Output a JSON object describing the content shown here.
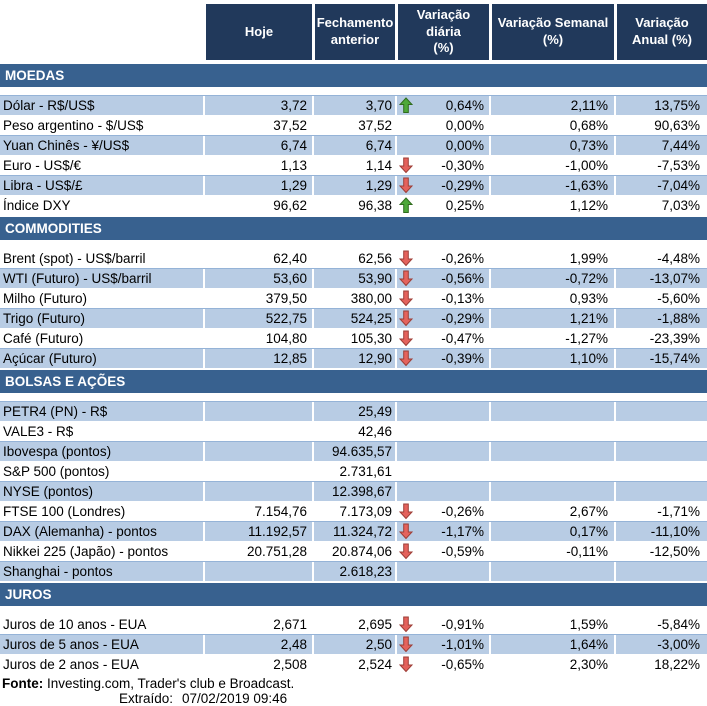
{
  "columns": [
    "",
    "Hoje",
    "Fechamento\nanterior",
    "Variação diária\n(%)",
    "Variação Semanal\n(%)",
    "Variação\nAnual (%)"
  ],
  "sections": [
    {
      "title": "MOEDAS",
      "rows": [
        {
          "label": "Dólar - R$/US$",
          "hoje": "3,72",
          "fechamento": "3,70",
          "arrow": "up",
          "var_diaria": "0,64%",
          "var_semanal": "2,11%",
          "var_anual": "13,75%"
        },
        {
          "label": "Peso argentino - $/US$",
          "hoje": "37,52",
          "fechamento": "37,52",
          "arrow": "",
          "var_diaria": "0,00%",
          "var_semanal": "0,68%",
          "var_anual": "90,63%"
        },
        {
          "label": "Yuan Chinês - ¥/US$",
          "hoje": "6,74",
          "fechamento": "6,74",
          "arrow": "",
          "var_diaria": "0,00%",
          "var_semanal": "0,73%",
          "var_anual": "7,44%"
        },
        {
          "label": "Euro - US$/€",
          "hoje": "1,13",
          "fechamento": "1,14",
          "arrow": "down",
          "var_diaria": "-0,30%",
          "var_semanal": "-1,00%",
          "var_anual": "-7,53%"
        },
        {
          "label": "Libra - US$/£",
          "hoje": "1,29",
          "fechamento": "1,29",
          "arrow": "down",
          "var_diaria": "-0,29%",
          "var_semanal": "-1,63%",
          "var_anual": "-7,04%"
        },
        {
          "label": "Índice DXY",
          "hoje": "96,62",
          "fechamento": "96,38",
          "arrow": "up",
          "var_diaria": "0,25%",
          "var_semanal": "1,12%",
          "var_anual": "7,03%"
        }
      ]
    },
    {
      "title": "COMMODITIES",
      "rows": [
        {
          "label": "Brent (spot) - US$/barril",
          "hoje": "62,40",
          "fechamento": "62,56",
          "arrow": "down",
          "var_diaria": "-0,26%",
          "var_semanal": "1,99%",
          "var_anual": "-4,48%"
        },
        {
          "label": "WTI (Futuro) - US$/barril",
          "hoje": "53,60",
          "fechamento": "53,90",
          "arrow": "down",
          "var_diaria": "-0,56%",
          "var_semanal": "-0,72%",
          "var_anual": "-13,07%"
        },
        {
          "label": "Milho (Futuro)",
          "hoje": "379,50",
          "fechamento": "380,00",
          "arrow": "down",
          "var_diaria": "-0,13%",
          "var_semanal": "0,93%",
          "var_anual": "-5,60%"
        },
        {
          "label": "Trigo (Futuro)",
          "hoje": "522,75",
          "fechamento": "524,25",
          "arrow": "down",
          "var_diaria": "-0,29%",
          "var_semanal": "1,21%",
          "var_anual": "-1,88%"
        },
        {
          "label": "Café (Futuro)",
          "hoje": "104,80",
          "fechamento": "105,30",
          "arrow": "down",
          "var_diaria": "-0,47%",
          "var_semanal": "-1,27%",
          "var_anual": "-23,39%"
        },
        {
          "label": "Açúcar (Futuro)",
          "hoje": "12,85",
          "fechamento": "12,90",
          "arrow": "down",
          "var_diaria": "-0,39%",
          "var_semanal": "1,10%",
          "var_anual": "-15,74%"
        }
      ]
    },
    {
      "title": "BOLSAS E AÇÕES",
      "rows": [
        {
          "label": "PETR4 (PN) - R$",
          "hoje": "",
          "fechamento": "25,49",
          "arrow": "",
          "var_diaria": "",
          "var_semanal": "",
          "var_anual": ""
        },
        {
          "label": "VALE3 - R$",
          "hoje": "",
          "fechamento": "42,46",
          "arrow": "",
          "var_diaria": "",
          "var_semanal": "",
          "var_anual": ""
        },
        {
          "label": "Ibovespa (pontos)",
          "hoje": "",
          "fechamento": "94.635,57",
          "arrow": "",
          "var_diaria": "",
          "var_semanal": "",
          "var_anual": ""
        },
        {
          "label": "S&P 500 (pontos)",
          "hoje": "",
          "fechamento": "2.731,61",
          "arrow": "",
          "var_diaria": "",
          "var_semanal": "",
          "var_anual": ""
        },
        {
          "label": "NYSE (pontos)",
          "hoje": "",
          "fechamento": "12.398,67",
          "arrow": "",
          "var_diaria": "",
          "var_semanal": "",
          "var_anual": ""
        },
        {
          "label": "FTSE 100 (Londres)",
          "hoje": "7.154,76",
          "fechamento": "7.173,09",
          "arrow": "down",
          "var_diaria": "-0,26%",
          "var_semanal": "2,67%",
          "var_anual": "-1,71%"
        },
        {
          "label": "DAX (Alemanha) - pontos",
          "hoje": "11.192,57",
          "fechamento": "11.324,72",
          "arrow": "down",
          "var_diaria": "-1,17%",
          "var_semanal": "0,17%",
          "var_anual": "-11,10%"
        },
        {
          "label": "Nikkei 225 (Japão) - pontos",
          "hoje": "20.751,28",
          "fechamento": "20.874,06",
          "arrow": "down",
          "var_diaria": "-0,59%",
          "var_semanal": "-0,11%",
          "var_anual": "-12,50%"
        },
        {
          "label": "Shanghai - pontos",
          "hoje": "",
          "fechamento": "2.618,23",
          "arrow": "",
          "var_diaria": "",
          "var_semanal": "",
          "var_anual": ""
        }
      ]
    },
    {
      "title": "JUROS",
      "rows": [
        {
          "label": "Juros de 10 anos - EUA",
          "hoje": "2,671",
          "fechamento": "2,695",
          "arrow": "down",
          "var_diaria": "-0,91%",
          "var_semanal": "1,59%",
          "var_anual": "-5,84%"
        },
        {
          "label": "Juros de 5 anos - EUA",
          "hoje": "2,48",
          "fechamento": "2,50",
          "arrow": "down",
          "var_diaria": "-1,01%",
          "var_semanal": "1,64%",
          "var_anual": "-3,00%"
        },
        {
          "label": "Juros de 2 anos - EUA",
          "hoje": "2,508",
          "fechamento": "2,524",
          "arrow": "down",
          "var_diaria": "-0,65%",
          "var_semanal": "2,30%",
          "var_anual": "18,22%"
        }
      ]
    }
  ],
  "footer": {
    "fonte_label": "Fonte:",
    "fonte_text": " Investing.com, Trader's club e Broadcast.",
    "extraido_label": "Extraído:",
    "extraido_value": "07/02/2019 09:46"
  },
  "icons": {
    "up": "arrow-up-icon",
    "down": "arrow-down-icon"
  },
  "colors": {
    "header_bg": "#21395B",
    "band_bg": "#38618F",
    "row_shade": "#B8CCE4",
    "row_hairline": "#95B3D7",
    "arrow_up_fill": "#4EA83A",
    "arrow_up_stroke": "#2F6B1D",
    "arrow_down_fill": "#E4625C",
    "arrow_down_stroke": "#9C3D36"
  }
}
